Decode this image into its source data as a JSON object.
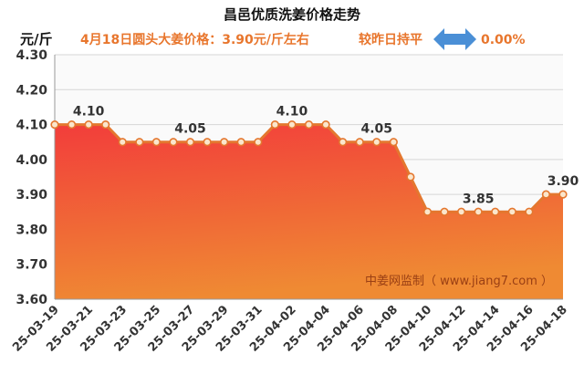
{
  "header": {
    "price_note": "4月18日圆头大姜价格：3.90元/斤左右",
    "change_text": "较昨日持平",
    "change_icon": "double-arrow-icon",
    "change_pct": "0.00%"
  },
  "colors": {
    "accent": "#E8762D",
    "arrow": "#4A8FD6",
    "line": "#E4772F",
    "marker_fill": "#FBE6CC",
    "fill_top": "#F23D3B",
    "fill_bottom": "#EF8A33",
    "grid": "#D6D6D6",
    "plot_bg": "#FAFAFA",
    "watermark": "#9A3F14"
  },
  "chart_data": {
    "type": "area",
    "title": "昌邑优质洗姜价格走势",
    "ylabel": "元/斤",
    "xlabel": "",
    "ylim": [
      3.6,
      4.3
    ],
    "yticks": [
      "4.30",
      "4.20",
      "4.10",
      "4.00",
      "3.90",
      "3.80",
      "3.70",
      "3.60"
    ],
    "grid": true,
    "x": [
      "25-03-19",
      "25-03-20",
      "25-03-21",
      "25-03-22",
      "25-03-23",
      "25-03-24",
      "25-03-25",
      "25-03-26",
      "25-03-27",
      "25-03-28",
      "25-03-29",
      "25-03-30",
      "25-03-31",
      "25-04-01",
      "25-04-02",
      "25-04-03",
      "25-04-04",
      "25-04-05",
      "25-04-06",
      "25-04-07",
      "25-04-08",
      "25-04-09",
      "25-04-10",
      "25-04-11",
      "25-04-12",
      "25-04-13",
      "25-04-14",
      "25-04-15",
      "25-04-16",
      "25-04-17",
      "25-04-18"
    ],
    "values": [
      4.1,
      4.1,
      4.1,
      4.1,
      4.05,
      4.05,
      4.05,
      4.05,
      4.05,
      4.05,
      4.05,
      4.05,
      4.05,
      4.1,
      4.1,
      4.1,
      4.1,
      4.05,
      4.05,
      4.05,
      4.05,
      3.95,
      3.85,
      3.85,
      3.85,
      3.85,
      3.85,
      3.85,
      3.85,
      3.9,
      3.9
    ],
    "xtick_labels": [
      "25-03-19",
      "25-03-21",
      "25-03-23",
      "25-03-25",
      "25-03-27",
      "25-03-29",
      "25-03-31",
      "25-04-02",
      "25-04-04",
      "25-04-06",
      "25-04-08",
      "25-04-10",
      "25-04-12",
      "25-04-14",
      "25-04-16",
      "25-04-18"
    ],
    "data_labels": [
      {
        "x": "25-03-21",
        "text": "4.10"
      },
      {
        "x": "25-03-27",
        "text": "4.05"
      },
      {
        "x": "25-04-02",
        "text": "4.10"
      },
      {
        "x": "25-04-07",
        "text": "4.05"
      },
      {
        "x": "25-04-13",
        "text": "3.85"
      },
      {
        "x": "25-04-18",
        "text": "3.90"
      }
    ],
    "watermark": "中姜网监制（ www.jiang7.com ）"
  }
}
